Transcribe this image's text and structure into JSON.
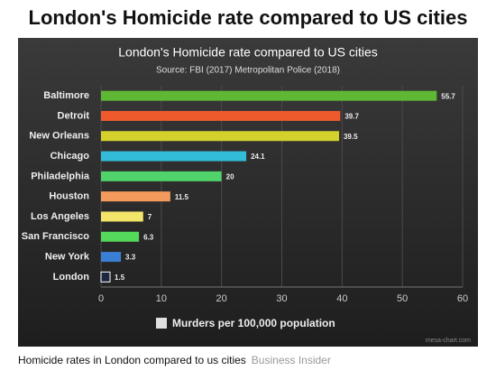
{
  "header": {
    "title": "London's Homicide rate compared to US cities"
  },
  "chart_data": {
    "type": "hbar",
    "title": "London's Homicide rate compared to US cities",
    "subtitle": "Source: FBI (2017) Metropolitan Police (2018)",
    "categories": [
      "Baltimore",
      "Detroit",
      "New Orleans",
      "Chicago",
      "Philadelphia",
      "Houston",
      "Los Angeles",
      "San Francisco",
      "New York",
      "London"
    ],
    "series": [
      {
        "name": "Murders per 100,000 population",
        "color": "#e0e0e0",
        "values": [
          55.7,
          39.7,
          39.5,
          24.1,
          20,
          11.5,
          7,
          6.3,
          3.3,
          1.5
        ]
      }
    ],
    "colors": [
      "#5fb833",
      "#ee5a2c",
      "#d4d12c",
      "#33bcd8",
      "#4fd36a",
      "#f39a5c",
      "#f3e46a",
      "#55d95a",
      "#3b7fd4",
      "#1d2740"
    ],
    "xlim": [
      0,
      60
    ],
    "xticks": [
      0,
      10,
      20,
      30,
      40,
      50,
      60
    ],
    "grid": true,
    "credit": "mesa-chart.com"
  },
  "caption": {
    "text": "Homicide rates in London compared to us cities",
    "source": "Business Insider"
  }
}
